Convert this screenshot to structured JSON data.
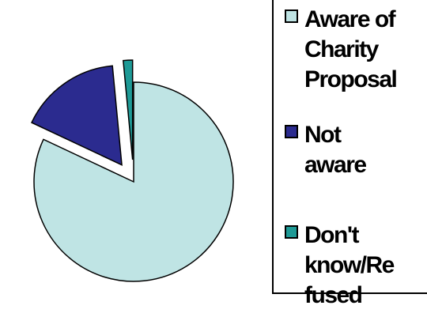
{
  "chart_data": {
    "type": "pie",
    "title": "",
    "exploded": true,
    "legend_position": "right",
    "slices": [
      {
        "label": "Aware of Charity Proposal",
        "value": 82,
        "color": "#bfe4e4"
      },
      {
        "label": "Not aware",
        "value": 16.5,
        "color": "#2b2b8f"
      },
      {
        "label": "Don't know/Refused",
        "value": 1.5,
        "color": "#1e9a96"
      }
    ]
  },
  "legend": {
    "items": [
      {
        "text": "Aware of\nCharity\nProposal"
      },
      {
        "text": "Not\naware"
      },
      {
        "text": "Don't\nknow/Re\nfused"
      }
    ]
  }
}
